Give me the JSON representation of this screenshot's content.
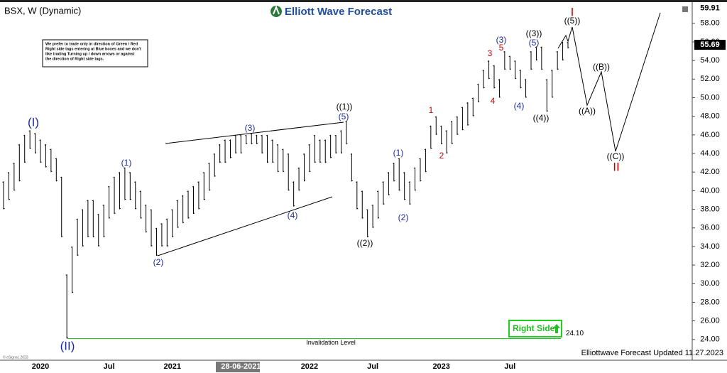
{
  "chart_data": {
    "type": "ohlc",
    "title": "BSX, W (Dynamic)",
    "brand": "Elliott Wave Forecast",
    "note": [
      "We prefer to trade only in direction of Green / Red",
      "Right side tags entering at Blue boxes and we don't",
      "like trading Turning up / down arrows or against",
      "the direction of Right side tags."
    ],
    "right_side": "Right Side",
    "updated": "Elliottwave Forecast Updated 11.27.2023",
    "source": "© eSignal, 2023",
    "color": "#000000",
    "categories": [
      null,
      null,
      null,
      null,
      null,
      null,
      null,
      "2020",
      null,
      null,
      null,
      null,
      null,
      null,
      null,
      null,
      null,
      null,
      null,
      null,
      "Jul",
      null,
      null,
      null,
      null,
      null,
      null,
      null,
      null,
      null,
      null,
      null,
      "2021",
      null,
      null,
      null,
      null,
      null,
      null,
      null,
      null,
      null,
      null,
      null,
      null,
      "28-06-2021",
      null,
      null,
      null,
      null,
      null,
      null,
      null,
      null,
      null,
      null,
      null,
      null,
      "2022",
      null,
      null,
      null,
      null,
      null,
      null,
      null,
      null,
      null,
      null,
      null,
      "Jul",
      null,
      null,
      null,
      null,
      null,
      null,
      null,
      null,
      null,
      null,
      null,
      null,
      "2023",
      null,
      null,
      null,
      null,
      null,
      null,
      null,
      null,
      null,
      null,
      null,
      null,
      "Jul",
      null,
      null,
      null,
      null,
      null,
      null,
      null,
      null,
      null,
      null,
      null
    ],
    "low": [
      38,
      39,
      40,
      41,
      43,
      44.5,
      44,
      43,
      42.5,
      42,
      41,
      35,
      24.1,
      29,
      33,
      34,
      35,
      35,
      34,
      35,
      37,
      37.5,
      38,
      39,
      39,
      38,
      37,
      35.5,
      34,
      33,
      34,
      34,
      35,
      36,
      36.5,
      37,
      37.5,
      38,
      39,
      40,
      41.5,
      43,
      43,
      43.5,
      44,
      44,
      45,
      45,
      45,
      44,
      43,
      43,
      42,
      42,
      40,
      38.3,
      40,
      41,
      42,
      43,
      43,
      43,
      43.5,
      44,
      44,
      45,
      41,
      38,
      37,
      35,
      36,
      37,
      38.5,
      39.5,
      41,
      40,
      39,
      38.5,
      40,
      41,
      42,
      44.5,
      46,
      45,
      44,
      45,
      46,
      46.5,
      47,
      48,
      49.5,
      51,
      52,
      51,
      50,
      53,
      53,
      52,
      51,
      50,
      53,
      54,
      53,
      48.5,
      50,
      53,
      54,
      55.3
    ],
    "high": [
      41,
      42,
      43,
      45,
      46,
      46.5,
      46.2,
      45.5,
      45,
      44.5,
      43.5,
      41.5,
      31,
      34,
      37,
      38,
      39,
      39,
      37.5,
      38.5,
      40.5,
      41.5,
      42,
      42.5,
      42,
      41,
      40,
      38.5,
      38,
      36,
      36.5,
      37,
      38,
      39,
      39.5,
      40,
      40.5,
      41,
      42,
      43,
      44,
      45,
      45.5,
      45.5,
      46,
      46,
      46,
      46.2,
      46,
      46,
      46,
      45.5,
      45,
      44.5,
      44,
      41,
      42.5,
      44,
      45,
      46,
      45.5,
      45.5,
      46,
      46,
      46.5,
      47.5,
      44,
      41,
      40,
      38,
      38.5,
      40,
      41,
      42,
      43,
      43.5,
      42,
      41,
      42.5,
      43.5,
      44.5,
      47,
      48,
      47,
      46.5,
      47.5,
      48,
      49,
      49.5,
      50,
      51.5,
      53,
      54,
      53.5,
      52,
      55,
      54.5,
      54,
      53,
      52,
      55,
      55.5,
      55.5,
      52,
      53,
      55,
      56,
      56
    ],
    "last_price": 55.69,
    "invalidation": {
      "value": 24.1,
      "label": "24.10",
      "text": "Invalidation Level",
      "color": "#1fcf1f"
    },
    "ylim": [
      22,
      59.91
    ],
    "yticks": [
      {
        "value": 24,
        "label": "24.00"
      },
      {
        "value": 26,
        "label": "26.00"
      },
      {
        "value": 28,
        "label": "28.00"
      },
      {
        "value": 30,
        "label": "30.00"
      },
      {
        "value": 32,
        "label": "32.00"
      },
      {
        "value": 34,
        "label": "34.00"
      },
      {
        "value": 36,
        "label": "36.00"
      },
      {
        "value": 38,
        "label": "38.00"
      },
      {
        "value": 40,
        "label": "40.00"
      },
      {
        "value": 42,
        "label": "42.00"
      },
      {
        "value": 44,
        "label": "44.00"
      },
      {
        "value": 46,
        "label": "46.00"
      },
      {
        "value": 48,
        "label": "48.00"
      },
      {
        "value": 50,
        "label": "50.00"
      },
      {
        "value": 52,
        "label": "52.00"
      },
      {
        "value": 54,
        "label": "54.00"
      },
      {
        "value": 56,
        "label": "56.00"
      },
      {
        "value": 58,
        "label": "58.00"
      }
    ],
    "wave_labels": [
      {
        "text": "(I)",
        "color": "#1c2aa0"
      },
      {
        "text": "(II)",
        "color": "#1c2aa0"
      },
      {
        "text": "(1)",
        "color": "#1c2aa0"
      },
      {
        "text": "(2)",
        "color": "#1c2aa0"
      },
      {
        "text": "(3)",
        "color": "#1c2aa0"
      },
      {
        "text": "(4)",
        "color": "#1c2aa0"
      },
      {
        "text": "(5)",
        "color": "#1c2aa0"
      },
      {
        "text": "((1))",
        "color": "#000000"
      },
      {
        "text": "((2))",
        "color": "#000000"
      },
      {
        "text": "(1)",
        "color": "#1c2aa0"
      },
      {
        "text": "(2)",
        "color": "#1c2aa0"
      },
      {
        "text": "1",
        "color": "#cc0000"
      },
      {
        "text": "2",
        "color": "#cc0000"
      },
      {
        "text": "3",
        "color": "#cc0000"
      },
      {
        "text": "4",
        "color": "#cc0000"
      },
      {
        "text": "5",
        "color": "#cc0000"
      },
      {
        "text": "(3)",
        "color": "#1c2aa0"
      },
      {
        "text": "((3))",
        "color": "#000000"
      },
      {
        "text": "(5)",
        "color": "#1c2aa0"
      },
      {
        "text": "(4)",
        "color": "#1c2aa0"
      },
      {
        "text": "((4))",
        "color": "#000000"
      },
      {
        "text": "((5))",
        "color": "#000000"
      },
      {
        "text": "I",
        "color": "#cc0000"
      },
      {
        "text": "((A))",
        "color": "#000000"
      },
      {
        "text": "((B))",
        "color": "#000000"
      },
      {
        "text": "((C))",
        "color": "#000000"
      },
      {
        "text": "II",
        "color": "#cc0000"
      }
    ]
  }
}
